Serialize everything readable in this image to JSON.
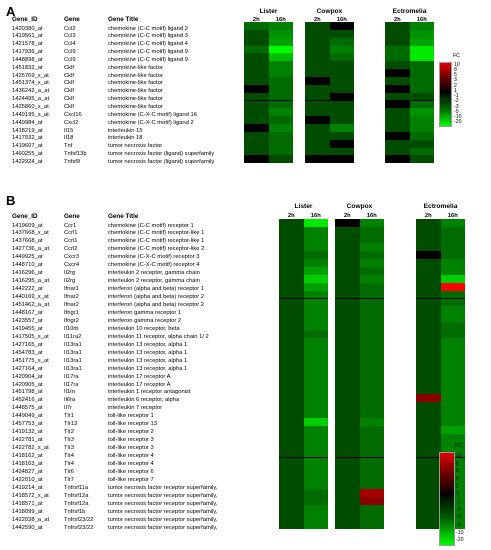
{
  "panels": [
    {
      "letter": "A",
      "headers": {
        "id": "Gene_ID",
        "gene": "Gene",
        "title": "Gene Title"
      },
      "groups": [
        {
          "name": "Lister",
          "timepoints": [
            "2h",
            "16h"
          ]
        },
        {
          "name": "Cowpox",
          "timepoints": [
            "2h",
            "16h"
          ]
        },
        {
          "name": "Ectromelia",
          "timepoints": [
            "2h",
            "16h"
          ]
        }
      ],
      "rows": [
        {
          "id": "1420380_at",
          "gene": "Ccl2",
          "title": "chemokine (C-C motif) ligand 2",
          "fc": [
            -2,
            -3,
            -1,
            0,
            -1,
            -3
          ]
        },
        {
          "id": "1419561_at",
          "gene": "Ccl3",
          "title": "chemokine (C-C motif) ligand 3",
          "fc": [
            -1,
            -4,
            -1,
            -1,
            -1,
            -4
          ]
        },
        {
          "id": "1421578_at",
          "gene": "Ccl4",
          "title": "chemokine (C-C motif) ligand 4",
          "fc": [
            -1,
            -5,
            -1,
            -2,
            -1,
            -5
          ]
        },
        {
          "id": "1417936_at",
          "gene": "Ccl9",
          "title": "chemokine (C-C motif) ligand 9",
          "fc": [
            -2,
            -20,
            -1,
            -3,
            -2,
            -15
          ]
        },
        {
          "id": "1448898_at",
          "gene": "Ccl9",
          "title": "chemokine (C-C motif) ligand 9",
          "fc": [
            -1,
            -8,
            -1,
            -2,
            -2,
            -15
          ]
        },
        {
          "id": "1451832_at",
          "gene": "Cklf",
          "title": "chemokine-like factor",
          "fc": [
            -1,
            -3,
            -1,
            -1,
            -1,
            -2
          ]
        },
        {
          "id": "1425769_x_at",
          "gene": "Cklf",
          "title": "chemokine-like factor",
          "fc": [
            -1,
            -3,
            -1,
            -1,
            0,
            -2
          ]
        },
        {
          "id": "1451374_x_at",
          "gene": "Cklf",
          "title": "chemokine-like factor",
          "fc": [
            -1,
            -2,
            0,
            -1,
            -1,
            -2
          ]
        },
        {
          "id": "1436242_a_at",
          "gene": "Cklf",
          "title": "chemokine-like factor",
          "fc": [
            0,
            -2,
            -1,
            -1,
            0,
            -2
          ]
        },
        {
          "id": "1424495_a_at",
          "gene": "Cklf",
          "title": "chemokine-like factor",
          "fc": [
            -1,
            -2,
            -1,
            0,
            -1,
            -1
          ]
        },
        {
          "id": "1425860_x_at",
          "gene": "Cklf",
          "title": "chemokine-like factor",
          "fc": [
            -1,
            -2,
            -1,
            -1,
            0,
            -2
          ]
        },
        {
          "id": "1449195_s_at",
          "gene": "Cxcl16",
          "title": "chemokine (C-X-C motif) ligand 16",
          "fc": [
            -1,
            -3,
            -1,
            -1,
            -1,
            -4
          ]
        },
        {
          "id": "1449984_at",
          "gene": "Cxcl2",
          "title": "chemokine (C-X-C motif) ligand 2",
          "fc": [
            -1,
            -2,
            0,
            -1,
            -1,
            -3
          ]
        },
        {
          "id": "1418219_at",
          "gene": "Il15",
          "title": "interleukin 15",
          "fc": [
            0,
            -3,
            -1,
            -3,
            -1,
            -3
          ]
        },
        {
          "id": "1417932_at",
          "gene": "Il18",
          "title": "interleukin 18",
          "fc": [
            -1,
            -2,
            -1,
            -1,
            0,
            -2
          ]
        },
        {
          "id": "1419607_at",
          "gene": "Tnf",
          "title": "tumor necrosis factor",
          "fc": [
            -1,
            -2,
            -1,
            0,
            -1,
            -1
          ]
        },
        {
          "id": "1460255_at",
          "gene": "Tnfsf13b",
          "title": "tumor necrosis factor (ligand) superfamily",
          "fc": [
            -1,
            -2,
            -1,
            -1,
            -1,
            -2
          ]
        },
        {
          "id": "1422924_at",
          "gene": "Tnfsf9",
          "title": "tumor necrosis factor (ligand) superfamily",
          "fc": [
            0,
            -1,
            0,
            0,
            0,
            -1
          ]
        }
      ],
      "legend": {
        "title": "FC",
        "ticks": [
          "10",
          "8",
          "5",
          "3",
          "2",
          "1",
          "-1",
          "-2",
          "-3",
          "-5",
          "-10",
          "-20"
        ]
      }
    },
    {
      "letter": "B",
      "headers": {
        "id": "Gene_ID",
        "gene": "Gene",
        "title": "Gene Title"
      },
      "groups": [
        {
          "name": "Lister",
          "timepoints": [
            "2h",
            "16h"
          ]
        },
        {
          "name": "Cowpox",
          "timepoints": [
            "2h",
            "16h"
          ]
        },
        {
          "name": "Ectromelia",
          "timepoints": [
            "2h",
            "16h"
          ]
        }
      ],
      "rows": [
        {
          "id": "1419609_at",
          "gene": "Ccr1",
          "title": "chemokine (C-C motif) receptor 1",
          "fc": [
            -1,
            -15,
            0,
            -3,
            -1,
            -3
          ]
        },
        {
          "id": "1437668_x_at",
          "gene": "Ccrl1",
          "title": "chemokine (C-C motif) receptor-like 1",
          "fc": [
            -1,
            -3,
            -1,
            -2,
            -1,
            -2
          ]
        },
        {
          "id": "1437668_at",
          "gene": "Ccrl1",
          "title": "chemokine (C-C motif) receptor-like 1",
          "fc": [
            -1,
            -3,
            -1,
            -2,
            -1,
            -2
          ]
        },
        {
          "id": "1427736_a_at",
          "gene": "Ccrl2",
          "title": "chemokine (C-C motif) receptor-like 2",
          "fc": [
            -1,
            -3,
            -1,
            -3,
            -1,
            -2
          ]
        },
        {
          "id": "1449925_at",
          "gene": "Cxcr3",
          "title": "chemokine (C-X-C motif) receptor 3",
          "fc": [
            -1,
            -2,
            -1,
            -2,
            0,
            -2
          ]
        },
        {
          "id": "1448710_at",
          "gene": "Cxcr4",
          "title": "chemokine (C-X-C motif) receptor 4",
          "fc": [
            -1,
            -3,
            -1,
            -3,
            -1,
            -3
          ]
        },
        {
          "id": "1416296_at",
          "gene": "Il2rg",
          "title": "interleukin 2 receptor, gamma chain",
          "fc": [
            -1,
            -5,
            -1,
            -2,
            -1,
            -3
          ]
        },
        {
          "id": "1416295_a_at",
          "gene": "Il2rg",
          "title": "interleukin 2 receptor, gamma chain",
          "fc": [
            -1,
            -10,
            -1,
            -3,
            -1,
            -10
          ]
        },
        {
          "id": "1442222_at",
          "gene": "Ifnar1",
          "title": "interferon (alpha and beta) receptor 1",
          "fc": [
            -1,
            -5,
            -1,
            -2,
            -1,
            10
          ]
        },
        {
          "id": "1440169_x_at",
          "gene": "Ifnar2",
          "title": "interferon (alpha and beta) receptor 2",
          "fc": [
            -1,
            -3,
            -1,
            -2,
            -1,
            -2
          ]
        },
        {
          "id": "1451462_a_at",
          "gene": "Ifnar2",
          "title": "interferon (alpha and beta) receptor 2",
          "fc": [
            -1,
            -3,
            -1,
            -2,
            -1,
            -2
          ]
        },
        {
          "id": "1448167_at",
          "gene": "Ifngr1",
          "title": "interferon gamma receptor 1",
          "fc": [
            -1,
            -3,
            -1,
            -2,
            -1,
            -3
          ]
        },
        {
          "id": "1423557_at",
          "gene": "Ifngr2",
          "title": "interferon gamma receptor 2",
          "fc": [
            -1,
            -3,
            -1,
            -2,
            -1,
            -3
          ]
        },
        {
          "id": "1419455_at",
          "gene": "Il10rb",
          "title": "interleukin 10 receptor, beta",
          "fc": [
            -1,
            -3,
            -1,
            -2,
            -1,
            -2
          ]
        },
        {
          "id": "1417505_s_at",
          "gene": "Il11ra2",
          "title": "interleukin 11 receptor, alpha chain 1/ 2",
          "fc": [
            -1,
            -2,
            -1,
            -2,
            -1,
            -2
          ]
        },
        {
          "id": "1427165_at",
          "gene": "Il13ra1",
          "title": "interleukin 13 receptor, alpha 1",
          "fc": [
            -1,
            -3,
            -1,
            -2,
            -1,
            -3
          ]
        },
        {
          "id": "1454783_at",
          "gene": "Il13ra1",
          "title": "interleukin 13 receptor, alpha 1",
          "fc": [
            -1,
            -3,
            -1,
            -2,
            -1,
            -3
          ]
        },
        {
          "id": "1451775_s_at",
          "gene": "Il13ra1",
          "title": "interleukin 13 receptor, alpha 1",
          "fc": [
            -1,
            -3,
            -1,
            -2,
            -1,
            -3
          ]
        },
        {
          "id": "1427164_at",
          "gene": "Il13ra1",
          "title": "interleukin 13 receptor, alpha 1",
          "fc": [
            -1,
            -3,
            -1,
            -2,
            -1,
            -3
          ]
        },
        {
          "id": "1420904_at",
          "gene": "Il17ra",
          "title": "interleukin 17 receptor A",
          "fc": [
            -1,
            -3,
            -1,
            -2,
            -1,
            -3
          ]
        },
        {
          "id": "1420905_at",
          "gene": "Il17ra",
          "title": "interleukin 17 receptor A",
          "fc": [
            -1,
            -3,
            -1,
            -2,
            -1,
            -3
          ]
        },
        {
          "id": "1451798_at",
          "gene": "Il1rn",
          "title": "interleukin 1 receptor antagonist",
          "fc": [
            -1,
            -3,
            -1,
            -2,
            -1,
            -3
          ]
        },
        {
          "id": "1452416_at",
          "gene": "Il6ra",
          "title": "interleukin 6 receptor, alpha",
          "fc": [
            -1,
            -3,
            -1,
            -2,
            2,
            -3
          ]
        },
        {
          "id": "1448575_at",
          "gene": "Il7r",
          "title": "interleukin 7 receptor",
          "fc": [
            -1,
            -3,
            -1,
            -2,
            -1,
            -3
          ]
        },
        {
          "id": "1449049_at",
          "gene": "Tlr1",
          "title": "toll-like receptor 1",
          "fc": [
            -1,
            -3,
            -1,
            -2,
            -1,
            -3
          ]
        },
        {
          "id": "1457753_at",
          "gene": "Tlr13",
          "title": "toll-like receptor 13",
          "fc": [
            -1,
            -10,
            -1,
            -3,
            -1,
            -3
          ]
        },
        {
          "id": "1419132_at",
          "gene": "Tlr2",
          "title": "toll-like receptor 2",
          "fc": [
            -1,
            -3,
            -1,
            -2,
            -1,
            -5
          ]
        },
        {
          "id": "1422781_at",
          "gene": "Tlr3",
          "title": "toll-like receptor 3",
          "fc": [
            -1,
            -3,
            -1,
            -2,
            -1,
            -3
          ]
        },
        {
          "id": "1422782_s_at",
          "gene": "Tlr3",
          "title": "toll-like receptor 3",
          "fc": [
            -1,
            -3,
            -1,
            -2,
            -1,
            -3
          ]
        },
        {
          "id": "1418162_at",
          "gene": "Tlr4",
          "title": "toll-like receptor 4",
          "fc": [
            -1,
            -3,
            -1,
            -2,
            -1,
            -3
          ]
        },
        {
          "id": "1418163_at",
          "gene": "Tlr4",
          "title": "toll-like receptor 4",
          "fc": [
            -1,
            -3,
            -1,
            -2,
            -1,
            -3
          ]
        },
        {
          "id": "1424827_at",
          "gene": "Tlr6",
          "title": "toll-like receptor 6",
          "fc": [
            -1,
            -3,
            -1,
            -2,
            -1,
            -3
          ]
        },
        {
          "id": "1422010_at",
          "gene": "Tlr7",
          "title": "toll-like receptor 7",
          "fc": [
            -1,
            -3,
            -1,
            -2,
            -1,
            -3
          ]
        },
        {
          "id": "1419214_at",
          "gene": "Tnfrsf11a",
          "title": "tumor necrosis factor receptor superfamily,",
          "fc": [
            -1,
            -3,
            -1,
            -2,
            -1,
            -3
          ]
        },
        {
          "id": "1418572_x_at",
          "gene": "Tnfrsf12a",
          "title": "tumor necrosis factor receptor superfamily,",
          "fc": [
            -1,
            -2,
            -1,
            3,
            -1,
            -3
          ]
        },
        {
          "id": "1418571_at",
          "gene": "Tnfrsf12a",
          "title": "tumor necrosis factor receptor superfamily,",
          "fc": [
            -1,
            -2,
            -1,
            2,
            -1,
            -3
          ]
        },
        {
          "id": "1418099_at",
          "gene": "Tnfrsf1b",
          "title": "tumor necrosis factor receptor superfamily,",
          "fc": [
            -1,
            -3,
            -1,
            -2,
            -1,
            -3
          ]
        },
        {
          "id": "1422038_a_at",
          "gene": "Tnfrsf23/22",
          "title": "tumor necrosis factor receptor superfamily,",
          "fc": [
            -1,
            -3,
            -1,
            -2,
            -1,
            -3
          ]
        },
        {
          "id": "1442590_at",
          "gene": "Tnfrsf23/22",
          "title": "tumor necrosis factor receptor superfamily,",
          "fc": [
            -1,
            -3,
            -1,
            -2,
            -1,
            -3
          ]
        }
      ],
      "legend": {
        "title": "FC",
        "ticks": [
          "10",
          "8",
          "5",
          "3",
          "2",
          "1",
          "-1",
          "-2",
          "-3",
          "-5",
          "-10",
          "-20"
        ]
      }
    }
  ],
  "colors": {
    "red_max": "#ff0000",
    "green_max": "#00ff00",
    "neutral": "#000000",
    "legend_stops": [
      "#e60000",
      "#b00000",
      "#800000",
      "#550000",
      "#300000",
      "#000000",
      "#002a00",
      "#004400",
      "#006600",
      "#009900",
      "#00cc00",
      "#00ff00"
    ]
  }
}
